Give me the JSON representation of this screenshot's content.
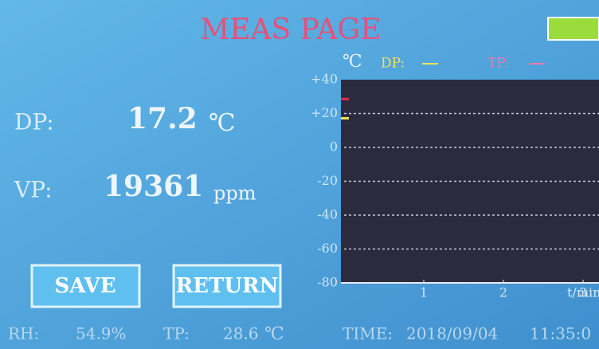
{
  "header": {
    "title": "MEAS PAGE"
  },
  "readings": [
    {
      "label": "DP:",
      "value": 17.2,
      "unit": "℃"
    },
    {
      "label": "VP:",
      "value": 19361,
      "unit": "ppm"
    }
  ],
  "buttons": [
    "SAVE",
    "RETURN"
  ],
  "status": {
    "rh": {
      "label": "RH:",
      "value": "54.9%"
    },
    "tp": {
      "label": "TP:",
      "value": 28.6,
      "unit": "℃"
    },
    "time": {
      "label": "TIME:",
      "date": "2018/09/04",
      "clock": "11:35:0"
    }
  },
  "chart": {
    "unit": "℃",
    "xlabel": "t/min",
    "legend": [
      {
        "name": "DP:",
        "color": "#f0e060"
      },
      {
        "name": "TP:",
        "color": "#f07aa8"
      }
    ],
    "ylim": [
      -80,
      40
    ],
    "yticks": [
      {
        "value": 40,
        "label": "+40"
      },
      {
        "value": 20,
        "label": "+20"
      },
      0,
      -20,
      -40,
      -60,
      -80
    ],
    "xlim": [
      0,
      3.2
    ],
    "xticks": [
      1,
      2,
      3
    ]
  }
}
